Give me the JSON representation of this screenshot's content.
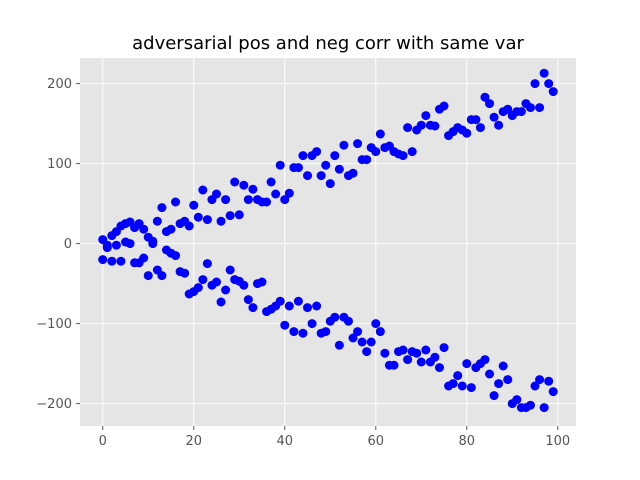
{
  "chart_data": {
    "type": "scatter",
    "title": "adversarial pos and neg corr with same var",
    "xlabel": "",
    "ylabel": "",
    "xlim": [
      -5,
      104
    ],
    "ylim": [
      -228,
      232
    ],
    "xticks": [
      0,
      20,
      40,
      60,
      80,
      100
    ],
    "yticks": [
      -200,
      -100,
      0,
      100,
      200
    ],
    "xtick_labels": [
      "0",
      "20",
      "40",
      "60",
      "80",
      "100"
    ],
    "ytick_labels": [
      "−200",
      "−100",
      "0",
      "100",
      "200"
    ],
    "grid": true,
    "legend": "none",
    "background_color": "#e5e5e5",
    "grid_color": "#ffffff",
    "marker_color": "#0000ff",
    "series": [
      {
        "x": [
          0,
          1,
          2,
          3,
          4,
          5,
          6,
          7,
          8,
          9,
          10,
          11,
          12,
          13,
          14,
          15,
          16,
          17,
          18,
          19,
          20,
          21,
          22,
          23,
          24,
          25,
          26,
          27,
          28,
          29,
          30,
          31,
          32,
          33,
          34,
          35,
          36,
          37,
          38,
          39,
          40,
          41,
          42,
          43,
          44,
          45,
          46,
          47,
          48,
          49,
          50,
          51,
          52,
          53,
          54,
          55,
          56,
          57,
          58,
          59,
          60,
          61,
          62,
          63,
          64,
          65,
          66,
          67,
          68,
          69,
          70,
          71,
          72,
          73,
          74,
          75,
          76,
          77,
          78,
          79,
          80,
          81,
          82,
          83,
          84,
          85,
          86,
          87,
          88,
          89,
          90,
          91,
          92,
          93,
          94,
          95,
          96,
          97,
          98,
          99
        ],
        "y": [
          5,
          -5,
          10,
          15,
          22,
          25,
          27,
          20,
          25,
          18,
          8,
          3,
          28,
          45,
          15,
          18,
          52,
          25,
          28,
          22,
          48,
          33,
          67,
          30,
          55,
          62,
          28,
          55,
          35,
          77,
          36,
          73,
          55,
          68,
          55,
          52,
          52,
          77,
          62,
          98,
          55,
          63,
          95,
          95,
          110,
          85,
          110,
          115,
          85,
          98,
          75,
          110,
          93,
          123,
          85,
          88,
          125,
          105,
          105,
          120,
          115,
          137,
          120,
          122,
          115,
          112,
          110,
          145,
          115,
          142,
          148,
          160,
          148,
          147,
          168,
          172,
          135,
          140,
          145,
          142,
          138,
          155,
          155,
          145,
          183,
          175,
          158,
          148,
          165,
          168,
          160,
          165,
          165,
          175,
          170,
          200,
          170,
          213,
          200,
          190
        ]
      },
      {
        "x": [
          0,
          1,
          2,
          3,
          4,
          5,
          6,
          7,
          8,
          9,
          10,
          11,
          12,
          13,
          14,
          15,
          16,
          17,
          18,
          19,
          20,
          21,
          22,
          23,
          24,
          25,
          26,
          27,
          28,
          29,
          30,
          31,
          32,
          33,
          34,
          35,
          36,
          37,
          38,
          39,
          40,
          41,
          42,
          43,
          44,
          45,
          46,
          47,
          48,
          49,
          50,
          51,
          52,
          53,
          54,
          55,
          56,
          57,
          58,
          59,
          60,
          61,
          62,
          63,
          64,
          65,
          66,
          67,
          68,
          69,
          70,
          71,
          72,
          73,
          74,
          75,
          76,
          77,
          78,
          79,
          80,
          81,
          82,
          83,
          84,
          85,
          86,
          87,
          88,
          89,
          90,
          91,
          92,
          93,
          94,
          95,
          96,
          97,
          98,
          99
        ],
        "y": [
          -20,
          -2,
          -22,
          -2,
          -22,
          2,
          0,
          -24,
          -24,
          -18,
          -40,
          0,
          -33,
          -40,
          -8,
          -12,
          -15,
          -35,
          -37,
          -63,
          -60,
          -55,
          -45,
          -25,
          -52,
          -48,
          -73,
          -58,
          -33,
          -45,
          -47,
          -52,
          -70,
          -80,
          -50,
          -48,
          -85,
          -82,
          -78,
          -72,
          -102,
          -78,
          -110,
          -72,
          -112,
          -80,
          -100,
          -78,
          -112,
          -110,
          -97,
          -92,
          -127,
          -92,
          -97,
          -118,
          -110,
          -123,
          -135,
          -123,
          -100,
          -110,
          -137,
          -152,
          -152,
          -135,
          -133,
          -145,
          -135,
          -137,
          -148,
          -133,
          -148,
          -142,
          -155,
          -130,
          -178,
          -175,
          -165,
          -178,
          -150,
          -180,
          -155,
          -150,
          -145,
          -163,
          -190,
          -175,
          -153,
          -170,
          -200,
          -195,
          -205,
          -205,
          -202,
          -178,
          -170,
          -205,
          -172,
          -185
        ]
      }
    ]
  }
}
